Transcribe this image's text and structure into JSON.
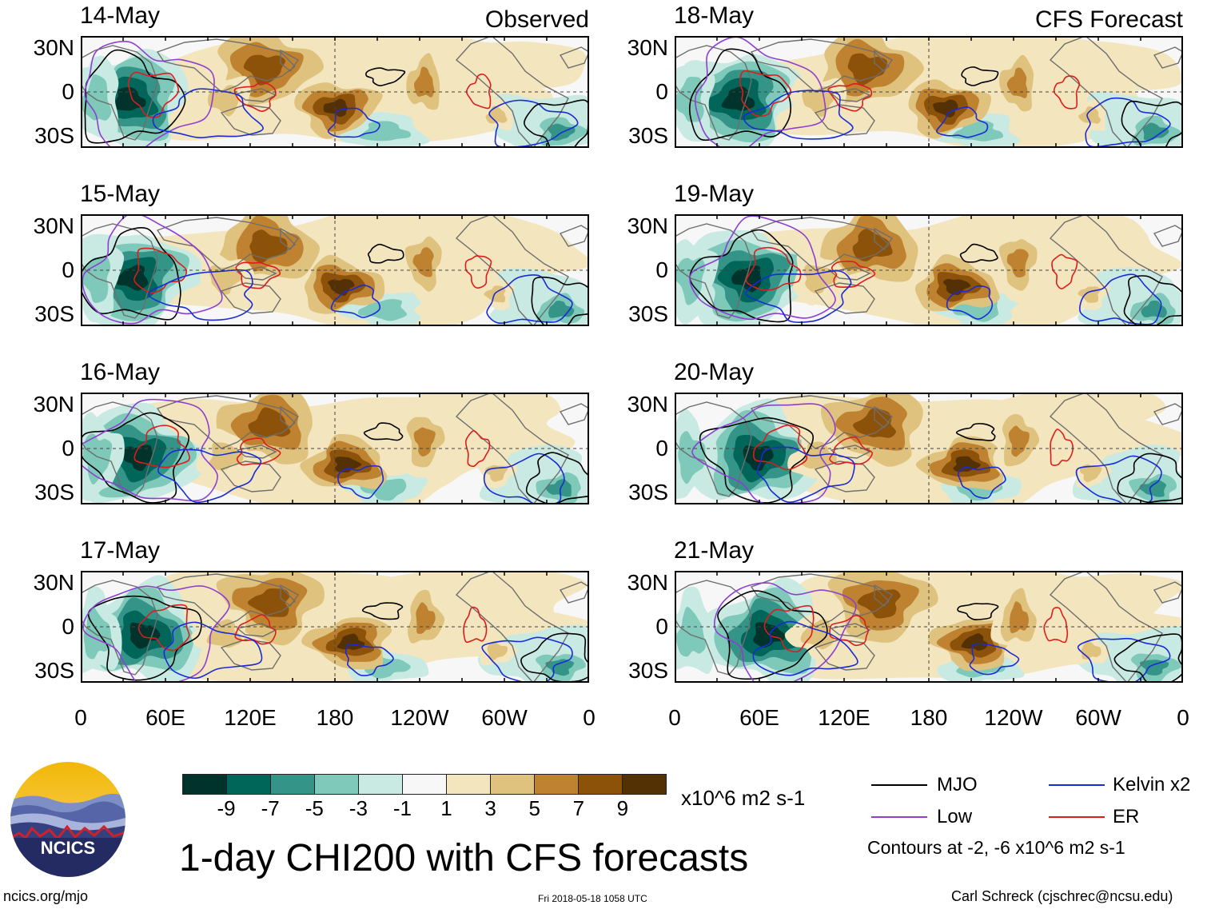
{
  "title": "1-day CHI200 with CFS forecasts",
  "columns": [
    {
      "heading": "Observed",
      "panels": [
        {
          "date": "14-May"
        },
        {
          "date": "15-May"
        },
        {
          "date": "16-May"
        },
        {
          "date": "17-May"
        }
      ]
    },
    {
      "heading": "CFS Forecast",
      "panels": [
        {
          "date": "18-May"
        },
        {
          "date": "19-May"
        },
        {
          "date": "20-May"
        },
        {
          "date": "21-May"
        }
      ]
    }
  ],
  "lat_ticks": [
    "30N",
    "0",
    "30S"
  ],
  "lon_ticks": [
    "0",
    "60E",
    "120E",
    "180",
    "120W",
    "60W",
    "0"
  ],
  "colorbar": {
    "colors": [
      "#00332b",
      "#00665a",
      "#349488",
      "#7ec9ba",
      "#c8eae2",
      "#f7f7f7",
      "#f3e5bd",
      "#dfc27e",
      "#be8230",
      "#8c520a",
      "#543005"
    ],
    "labels": [
      "-9",
      "-7",
      "-5",
      "-3",
      "-1",
      "1",
      "3",
      "5",
      "7",
      "9"
    ],
    "units": "x10^6 m2 s-1"
  },
  "legend": {
    "items": [
      {
        "label": "MJO",
        "color": "#000000"
      },
      {
        "label": "Kelvin x2",
        "color": "#1a2bd6"
      },
      {
        "label": "Low",
        "color": "#8e3fd1"
      },
      {
        "label": "ER",
        "color": "#dd1c1c"
      }
    ],
    "note": "Contours at -2, -6 x10^6 m2 s-1"
  },
  "logo_text": "NCICS",
  "footer": {
    "url": "ncics.org/mjo",
    "timestamp": "Fri 2018-05-18 1058 UTC",
    "credit": "Carl Schreck (cjschrec@ncsu.edu)"
  }
}
